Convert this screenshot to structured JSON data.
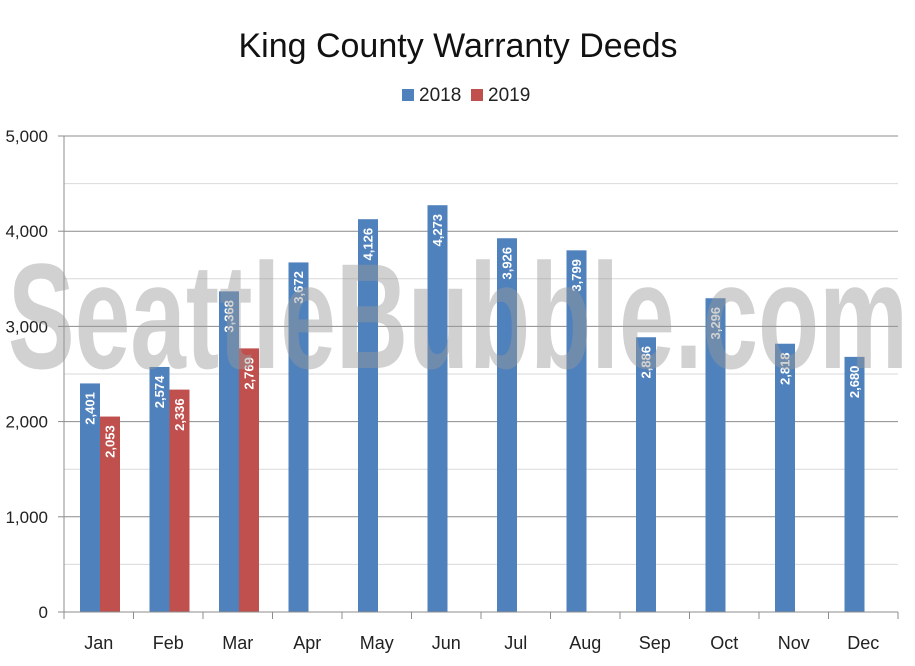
{
  "chart_data": {
    "type": "bar",
    "title": "King County Warranty Deeds",
    "xlabel": "",
    "ylabel": "",
    "categories": [
      "Jan",
      "Feb",
      "Mar",
      "Apr",
      "May",
      "Jun",
      "Jul",
      "Aug",
      "Sep",
      "Oct",
      "Nov",
      "Dec"
    ],
    "series": [
      {
        "name": "2018",
        "color": "#4f81bd",
        "values": [
          2401,
          2574,
          3368,
          3672,
          4126,
          4273,
          3926,
          3799,
          2886,
          3296,
          2818,
          2680
        ],
        "labels": [
          "2,401",
          "2,574",
          "3,368",
          "3,672",
          "4,126",
          "4,273",
          "3,926",
          "3,799",
          "2,886",
          "3,296",
          "2,818",
          "2,680"
        ]
      },
      {
        "name": "2019",
        "color": "#c0504d",
        "values": [
          2053,
          2336,
          2769,
          null,
          null,
          null,
          null,
          null,
          null,
          null,
          null,
          null
        ],
        "labels": [
          "2,053",
          "2,336",
          "2,769",
          "",
          "",
          "",
          "",
          "",
          "",
          "",
          "",
          ""
        ]
      }
    ],
    "ylim": [
      0,
      5000
    ],
    "yticks": [
      0,
      1000,
      2000,
      3000,
      4000,
      5000
    ],
    "ytick_labels": [
      "0",
      "1,000",
      "2,000",
      "3,000",
      "4,000",
      "5,000"
    ],
    "grid": true,
    "legend_position": "top-center",
    "watermark": "SeattleBubble.com"
  }
}
